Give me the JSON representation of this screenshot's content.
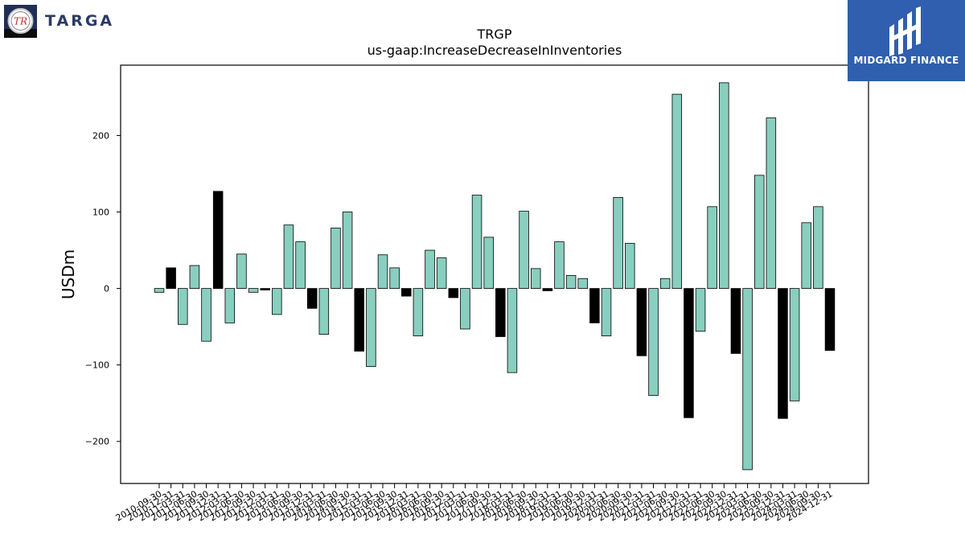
{
  "branding": {
    "left_logo": {
      "monogram": "TR",
      "name": "TARGA"
    },
    "right_logo": {
      "name": "MIDGARD FINANCE",
      "background": "#2f5fae"
    }
  },
  "chart_data": {
    "type": "bar",
    "title": "TRGP",
    "subtitle": "us-gaap:IncreaseDecreaseInInventories",
    "xlabel": "",
    "ylabel": "USDm",
    "ylim": [
      -255,
      292
    ],
    "yticks": [
      -200,
      -100,
      0,
      100,
      200
    ],
    "grid": false,
    "colors": {
      "quarter": "#88cfbf",
      "annual": "#000000",
      "edge": "#000000"
    },
    "categories": [
      "2010-09-30",
      "2010-12-31",
      "2011-03-31",
      "2011-06-30",
      "2011-09-30",
      "2011-12-31",
      "2012-03-31",
      "2012-06-30",
      "2012-09-30",
      "2012-12-31",
      "2013-03-31",
      "2013-06-30",
      "2013-09-30",
      "2013-12-31",
      "2014-03-31",
      "2014-06-30",
      "2014-09-30",
      "2014-12-31",
      "2015-03-31",
      "2015-06-30",
      "2015-09-30",
      "2015-12-31",
      "2016-03-31",
      "2016-06-30",
      "2016-09-30",
      "2016-12-31",
      "2017-03-31",
      "2017-06-30",
      "2017-09-30",
      "2017-12-31",
      "2018-03-31",
      "2018-06-30",
      "2018-09-30",
      "2018-12-31",
      "2019-03-31",
      "2019-06-30",
      "2019-09-30",
      "2019-12-31",
      "2020-03-31",
      "2020-06-30",
      "2020-09-30",
      "2020-12-31",
      "2021-03-31",
      "2021-06-30",
      "2021-09-30",
      "2021-12-31",
      "2022-03-31",
      "2022-06-30",
      "2022-09-30",
      "2022-12-31",
      "2023-03-31",
      "2023-06-30",
      "2023-09-30",
      "2023-12-31",
      "2024-03-31",
      "2024-06-30",
      "2024-09-30",
      "2024-12-31"
    ],
    "values": [
      -5,
      27,
      -47,
      30,
      -69,
      127,
      -45,
      45,
      -5,
      -2,
      -34,
      83,
      61,
      -26,
      -60,
      79,
      100,
      -82,
      -102,
      44,
      27,
      -10,
      -62,
      50,
      40,
      -12,
      -53,
      122,
      67,
      -63,
      -110,
      101,
      26,
      -3,
      61,
      17,
      13,
      -45,
      -62,
      119,
      59,
      -88,
      -140,
      13,
      254,
      -169,
      -56,
      107,
      269,
      -85,
      -237,
      148,
      223,
      -170,
      -147,
      86,
      107,
      -81
    ],
    "annual": [
      false,
      true,
      false,
      false,
      false,
      true,
      false,
      false,
      false,
      true,
      false,
      false,
      false,
      true,
      false,
      false,
      false,
      true,
      false,
      false,
      false,
      true,
      false,
      false,
      false,
      true,
      false,
      false,
      false,
      true,
      false,
      false,
      false,
      true,
      false,
      false,
      false,
      true,
      false,
      false,
      false,
      true,
      false,
      false,
      false,
      true,
      false,
      false,
      false,
      true,
      false,
      false,
      false,
      true,
      false,
      false,
      false,
      true
    ]
  }
}
